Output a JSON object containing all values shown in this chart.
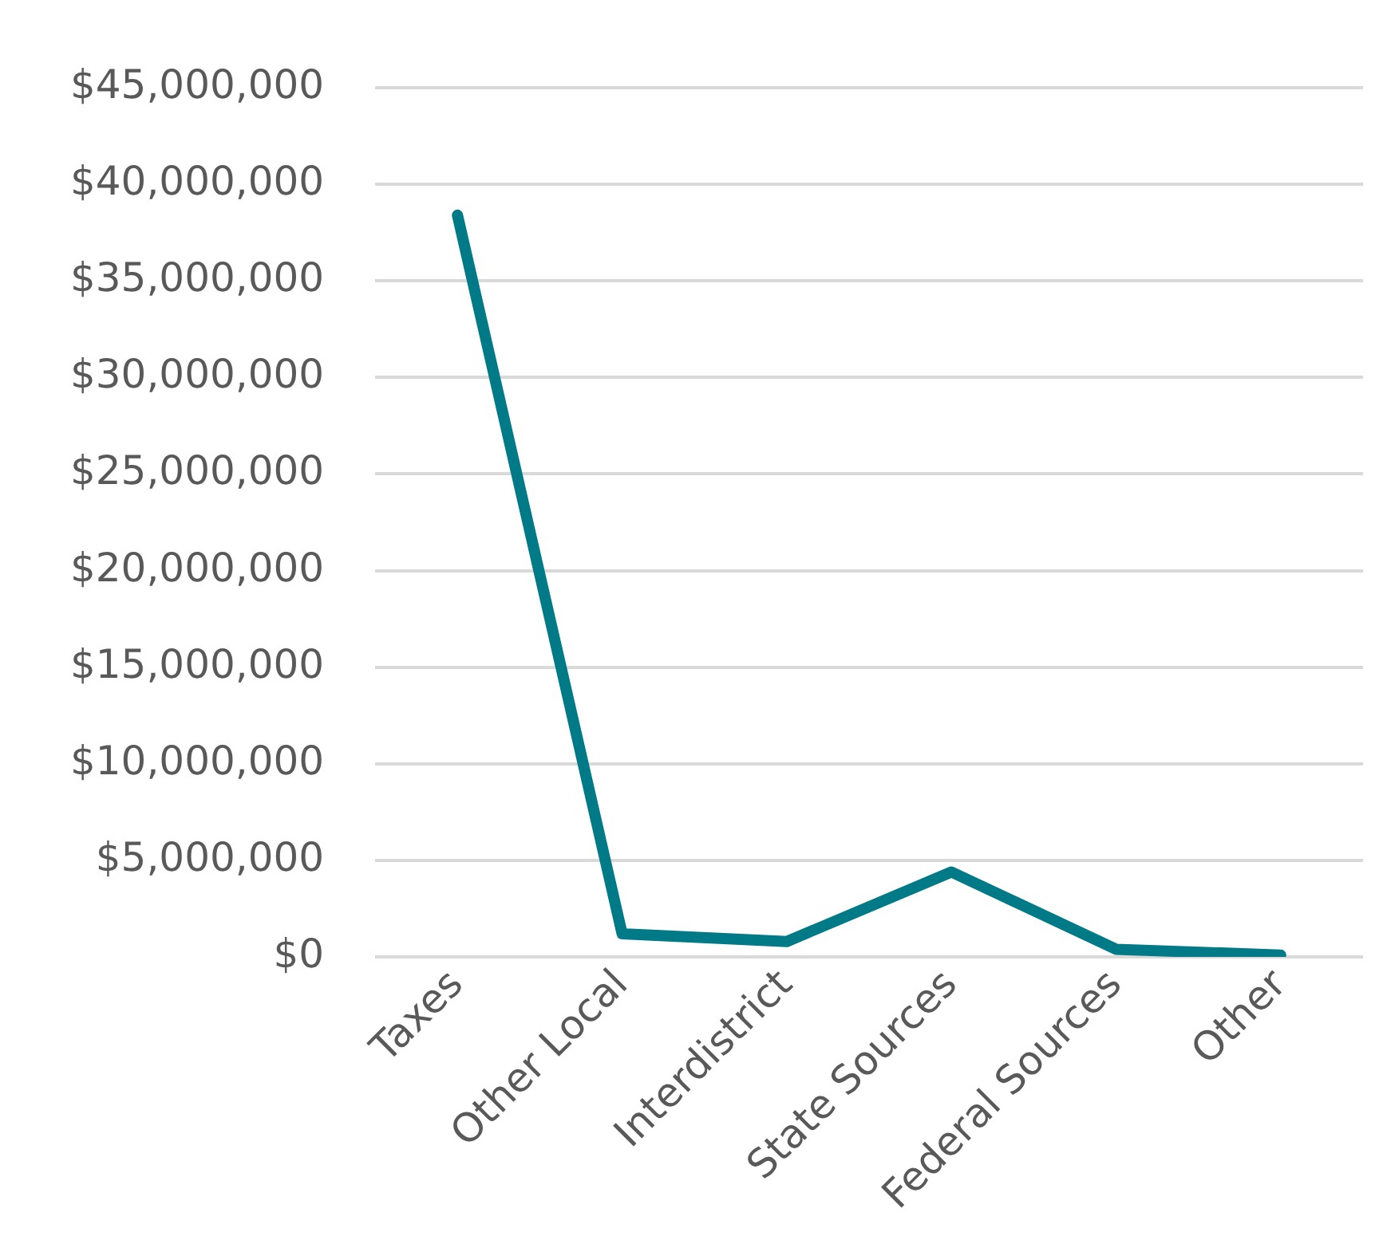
{
  "chart_data": {
    "type": "line",
    "categories": [
      "Taxes",
      "Other Local",
      "Interdistrict",
      "State Sources",
      "Federal Sources",
      "Other"
    ],
    "series": [
      {
        "color": "#007a87",
        "values": [
          38400000,
          1200000,
          800000,
          4400000,
          400000,
          100000
        ]
      }
    ],
    "ylim": [
      0,
      45000000
    ],
    "yticks": [
      {
        "value": 0,
        "label": "$0"
      },
      {
        "value": 5000000,
        "label": "$5,000,000"
      },
      {
        "value": 10000000,
        "label": "$10,000,000"
      },
      {
        "value": 15000000,
        "label": "$15,000,000"
      },
      {
        "value": 20000000,
        "label": "$20,000,000"
      },
      {
        "value": 25000000,
        "label": "$25,000,000"
      },
      {
        "value": 30000000,
        "label": "$30,000,000"
      },
      {
        "value": 35000000,
        "label": "$35,000,000"
      },
      {
        "value": 40000000,
        "label": "$40,000,000"
      },
      {
        "value": 45000000,
        "label": "$45,000,000"
      }
    ],
    "grid": "y",
    "legend": false,
    "marker": "none",
    "line_style": "solid"
  }
}
